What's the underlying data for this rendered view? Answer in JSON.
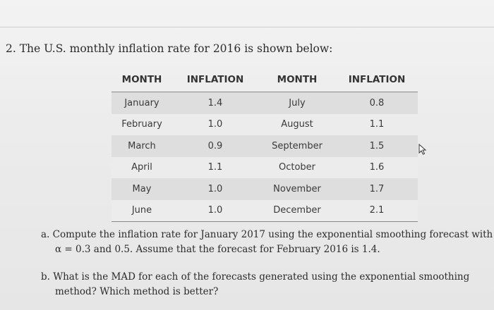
{
  "question": {
    "title": "2. The U.S. monthly inflation rate for 2016 is shown below:"
  },
  "table": {
    "headers": [
      "MONTH",
      "INFLATION",
      "MONTH",
      "INFLATION"
    ],
    "rows": [
      [
        "January",
        "1.4",
        "July",
        "0.8"
      ],
      [
        "February",
        "1.0",
        "August",
        "1.1"
      ],
      [
        "March",
        "0.9",
        "September",
        "1.5"
      ],
      [
        "April",
        "1.1",
        "October",
        "1.6"
      ],
      [
        "May",
        "1.0",
        "November",
        "1.7"
      ],
      [
        "June",
        "1.0",
        "December",
        "2.1"
      ]
    ]
  },
  "part_a": {
    "line1": "a. Compute the inflation rate for January 2017 using the exponential smoothing forecast with",
    "line2": "α = 0.3 and 0.5. Assume that the forecast for February 2016 is 1.4."
  },
  "part_b": {
    "line1": "b. What is the MAD for each of the forecasts generated using the exponential smoothing",
    "line2": "method? Which method is better?"
  },
  "icons": {
    "cursor": "mouse-pointer-icon"
  }
}
